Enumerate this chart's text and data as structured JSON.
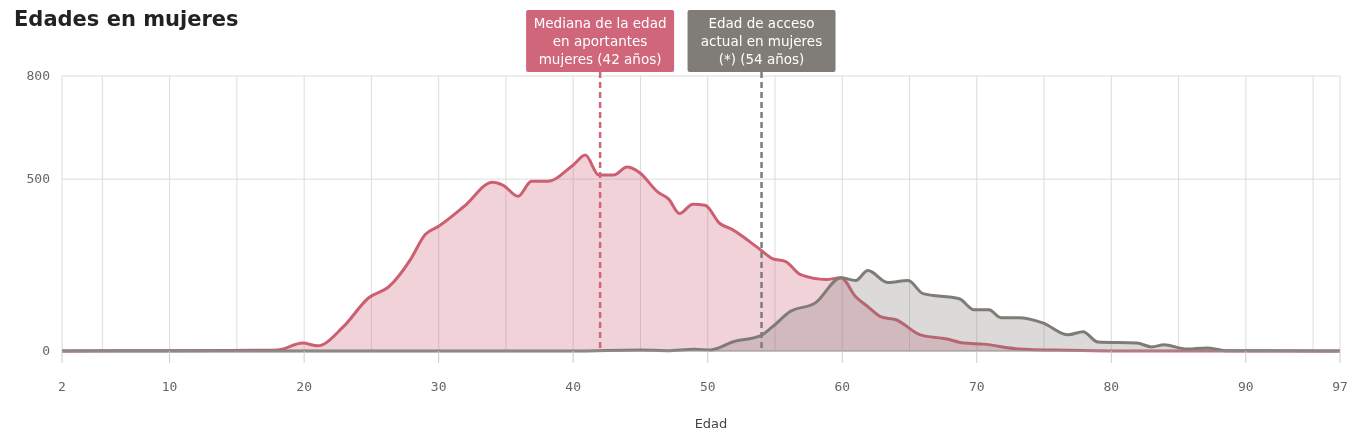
{
  "chart_data": {
    "type": "area",
    "title": "Edades en mujeres",
    "xlabel": "Edad",
    "xlim": [
      2,
      97
    ],
    "xticks": [
      2,
      {
        "value": 5,
        "label": null
      },
      10,
      {
        "value": 15,
        "label": null
      },
      20,
      {
        "value": 25,
        "label": null
      },
      30,
      {
        "value": 35,
        "label": null
      },
      40,
      {
        "value": 45,
        "label": null
      },
      50,
      {
        "value": 55,
        "label": null
      },
      60,
      {
        "value": 65,
        "label": null
      },
      70,
      {
        "value": 75,
        "label": null
      },
      80,
      {
        "value": 85,
        "label": null
      },
      90,
      {
        "value": 95,
        "label": null
      },
      97
    ],
    "ylim": [
      0,
      800
    ],
    "yticks": [
      0,
      500,
      800
    ],
    "grid": true,
    "series": [
      {
        "color": "#cc5f72",
        "x": [
          2,
          10,
          17,
          18,
          19.9,
          21,
          22.9,
          24.8,
          26.3,
          27.9,
          29,
          30,
          31.9,
          34,
          34.8,
          35.9,
          36.9,
          38.1,
          40,
          40.9,
          41.9,
          43,
          44,
          44.9,
          46.3,
          47.1,
          47.9,
          48.9,
          49.8,
          50.9,
          51.8,
          53.9,
          54.8,
          55.8,
          56.9,
          58.8,
          59.9,
          61,
          61.9,
          62.9,
          64,
          65.8,
          67.8,
          69,
          70.5,
          73.1,
          76.6,
          80,
          97
        ],
        "values": [
          0,
          1,
          2,
          3,
          23,
          15,
          70,
          155,
          187,
          266,
          339,
          363,
          421,
          491,
          482,
          450,
          494,
          494,
          541,
          570,
          512,
          512,
          535,
          520,
          462,
          442,
          400,
          427,
          424,
          371,
          354,
          295,
          269,
          260,
          222,
          208,
          213,
          158,
          129,
          99,
          91,
          47,
          35,
          23,
          20,
          6,
          2,
          0,
          0
        ]
      },
      {
        "color": "#7f7b76",
        "x": [
          2,
          40,
          45,
          47,
          49,
          50.2,
          51.9,
          53.9,
          54.8,
          56.1,
          58,
          59.9,
          61,
          61.9,
          63.4,
          64.9,
          66,
          68.7,
          69.8,
          70.9,
          71.8,
          73.1,
          74.9,
          76.8,
          77.9,
          79,
          81.9,
          83,
          83.9,
          85.6,
          87.1,
          88.5,
          97
        ],
        "values": [
          0,
          0,
          3,
          1,
          5,
          3,
          27,
          44,
          70,
          114,
          140,
          213,
          205,
          234,
          199,
          205,
          167,
          152,
          120,
          120,
          97,
          97,
          82,
          47,
          56,
          26,
          23,
          12,
          18,
          6,
          9,
          1,
          0
        ]
      }
    ],
    "ref_lines": [
      {
        "axis": "x",
        "value": 42,
        "label": "Mediana de la edad\nen aportantes\nmujeres (42 años)",
        "color": "#d0667a",
        "line_style": "dashed"
      },
      {
        "axis": "x",
        "value": 54,
        "label": "Edad de acceso\nactual en mujeres\n(*) (54 años)",
        "color": "#807c77",
        "line_style": "dashed"
      }
    ]
  }
}
